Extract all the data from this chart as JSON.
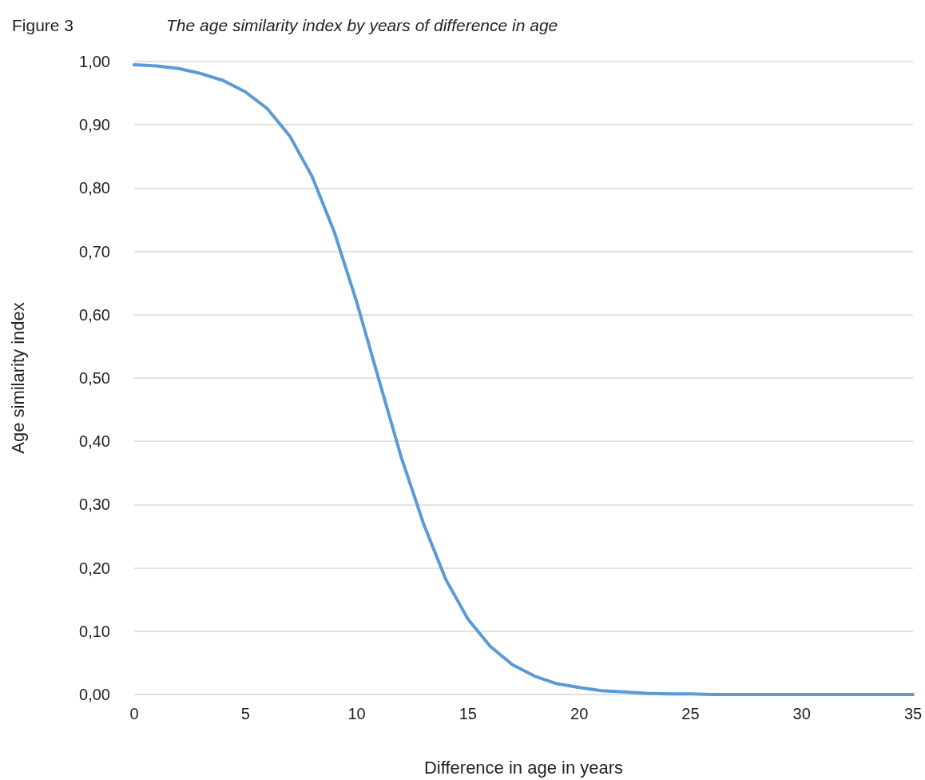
{
  "chart_data": {
    "type": "line",
    "title": "Figure 3",
    "subtitle": "The age similarity index by years of difference in age",
    "xlabel": "Difference in age in years",
    "ylabel": "Age similarity index",
    "x": [
      0,
      1,
      2,
      3,
      4,
      5,
      6,
      7,
      8,
      9,
      10,
      11,
      12,
      13,
      14,
      15,
      16,
      17,
      18,
      19,
      20,
      21,
      22,
      23,
      24,
      25,
      26,
      27,
      28,
      29,
      30,
      31,
      32,
      33,
      34,
      35
    ],
    "series": [
      {
        "color": "#5b9bd5",
        "values": [
          0.995,
          0.993,
          0.989,
          0.981,
          0.97,
          0.952,
          0.925,
          0.882,
          0.818,
          0.73,
          0.62,
          0.497,
          0.375,
          0.27,
          0.182,
          0.119,
          0.076,
          0.047,
          0.029,
          0.017,
          0.011,
          0.006,
          0.004,
          0.002,
          0.001,
          0.001,
          0,
          0,
          0,
          0,
          0,
          0,
          0,
          0,
          0,
          0
        ]
      }
    ],
    "xlim": [
      0,
      35
    ],
    "xticks": [
      0,
      5,
      10,
      15,
      20,
      25,
      30,
      35
    ],
    "ylim": [
      0,
      1
    ],
    "yticks": [
      {
        "value": 0,
        "label": "0,00"
      },
      {
        "value": 0.1,
        "label": "0,10"
      },
      {
        "value": 0.2,
        "label": "0,20"
      },
      {
        "value": 0.3,
        "label": "0,30"
      },
      {
        "value": 0.4,
        "label": "0,40"
      },
      {
        "value": 0.5,
        "label": "0,50"
      },
      {
        "value": 0.6,
        "label": "0,60"
      },
      {
        "value": 0.7,
        "label": "0,70"
      },
      {
        "value": 0.8,
        "label": "0,80"
      },
      {
        "value": 0.9,
        "label": "0,90"
      },
      {
        "value": 1,
        "label": "1,00"
      }
    ],
    "grid": "y",
    "marker": "none",
    "line_style": "solid"
  }
}
